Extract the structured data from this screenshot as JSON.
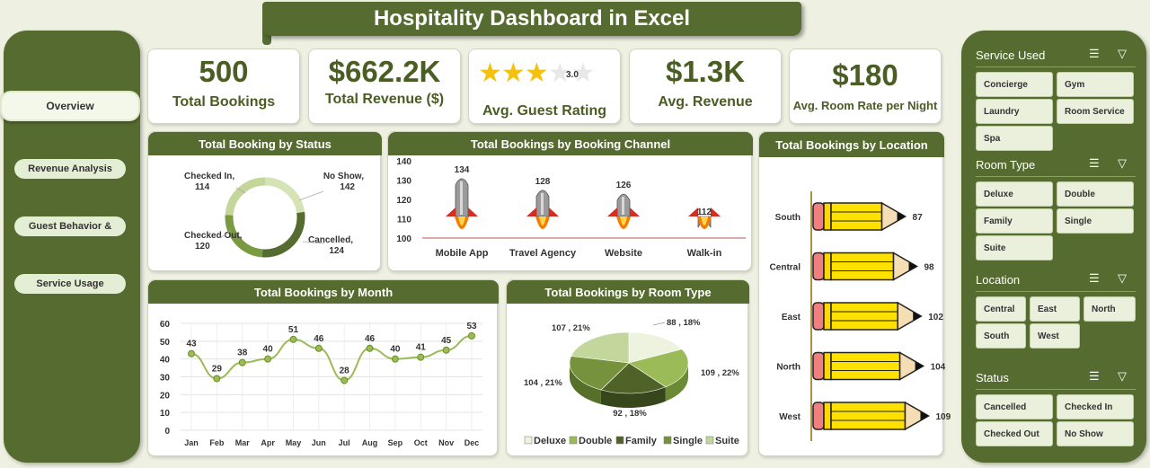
{
  "title": "Hospitality Dashboard in Excel",
  "nav": [
    {
      "label": "Overview"
    },
    {
      "label": "Revenue Analysis"
    },
    {
      "label": "Guest Behavior &"
    },
    {
      "label": "Service Usage"
    }
  ],
  "kpis": [
    {
      "value": "500",
      "label": "Total Bookings"
    },
    {
      "value": "$662.2K",
      "label": "Total Revenue ($)"
    },
    {
      "value": "3.0",
      "label": "Avg. Guest Rating",
      "stars": 3,
      "max_stars": 5
    },
    {
      "value": "$1.3K",
      "label": "Avg. Revenue"
    },
    {
      "value": "$180",
      "label": "Avg. Room Rate per Night"
    }
  ],
  "panels": {
    "status": "Total Booking by Status",
    "channel": "Total Bookings by Booking Channel",
    "location": "Total Bookings by Location",
    "month": "Total Bookings by Month",
    "room": "Total Bookings by Room Type"
  },
  "slicers": {
    "service": {
      "title": "Service Used",
      "items": [
        "Concierge",
        "Gym",
        "Laundry",
        "Room Service",
        "Spa"
      ]
    },
    "room": {
      "title": "Room Type",
      "items": [
        "Deluxe",
        "Double",
        "Family",
        "Single",
        "Suite"
      ]
    },
    "location": {
      "title": "Location",
      "items": [
        "Central",
        "East",
        "North",
        "South",
        "West"
      ]
    },
    "status": {
      "title": "Status",
      "items": [
        "Cancelled",
        "Checked In",
        "Checked Out",
        "No Show"
      ]
    }
  },
  "colors": {
    "accent": "#556b2f",
    "kpi_text": "#4a5d23",
    "star": "#f4c20d"
  },
  "chart_data": [
    {
      "id": "status",
      "type": "pie",
      "title": "Total Booking by Status",
      "categories": [
        "Checked In",
        "No Show",
        "Cancelled",
        "Checked Out"
      ],
      "values": [
        114,
        142,
        124,
        120
      ],
      "display_labels": [
        "Checked In,\n114",
        "No Show,\n142",
        "Cancelled,\n124",
        "Checked Out,\n120"
      ]
    },
    {
      "id": "channel",
      "type": "bar",
      "title": "Total Bookings by Booking Channel",
      "categories": [
        "Mobile App",
        "Travel Agency",
        "Website",
        "Walk-in"
      ],
      "values": [
        134,
        128,
        126,
        112
      ],
      "ylim": [
        100,
        140
      ],
      "yticks": [
        100,
        110,
        120,
        130,
        140
      ]
    },
    {
      "id": "location",
      "type": "bar",
      "title": "Total Bookings by Location",
      "categories": [
        "South",
        "Central",
        "East",
        "North",
        "West"
      ],
      "values": [
        87,
        98,
        102,
        104,
        109
      ]
    },
    {
      "id": "month",
      "type": "line",
      "title": "Total Bookings by Month",
      "categories": [
        "Jan",
        "Feb",
        "Mar",
        "Apr",
        "May",
        "Jun",
        "Jul",
        "Aug",
        "Sep",
        "Oct",
        "Nov",
        "Dec"
      ],
      "values": [
        43,
        29,
        38,
        40,
        51,
        46,
        28,
        46,
        40,
        41,
        45,
        53
      ],
      "ylim": [
        0,
        60
      ],
      "yticks": [
        0,
        10,
        20,
        30,
        40,
        50,
        60
      ],
      "grid": true
    },
    {
      "id": "room",
      "type": "pie",
      "title": "Total Bookings by Room Type",
      "categories": [
        "Deluxe",
        "Double",
        "Family",
        "Single",
        "Suite"
      ],
      "values": [
        88,
        109,
        92,
        104,
        107
      ],
      "display_labels": [
        "88 , 18%",
        "109 , 22%",
        "92 , 18%",
        "104 , 21%",
        "107 , 21%"
      ],
      "legend": "bottom"
    }
  ]
}
